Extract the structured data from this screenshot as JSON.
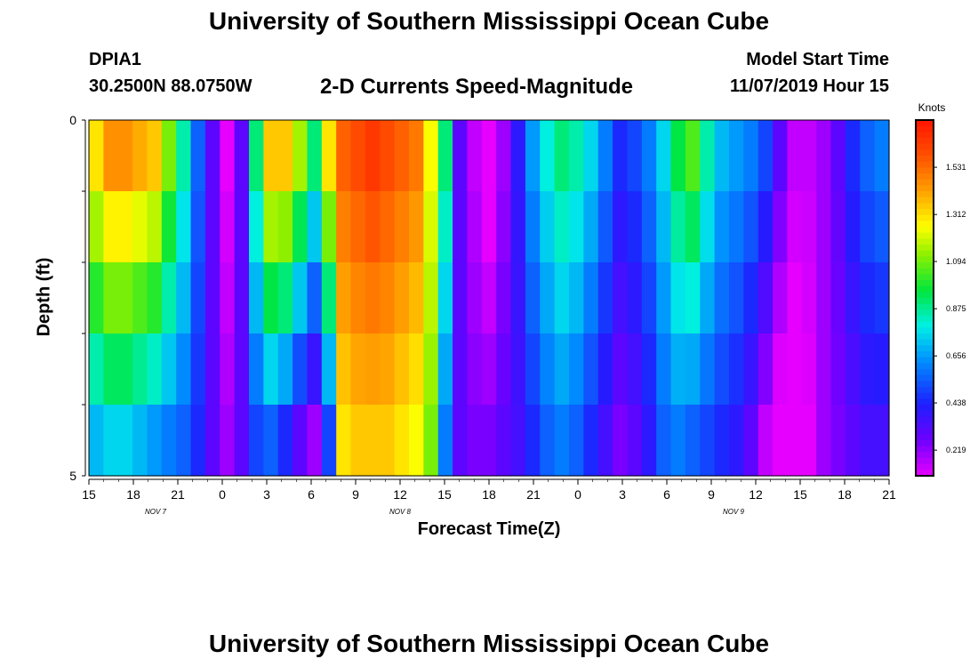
{
  "header": {
    "title": "University of Southern Mississippi Ocean Cube",
    "station": "DPIA1",
    "coords": "30.2500N 88.0750W",
    "subtitle": "2-D Currents Speed-Magnitude",
    "model_start_label": "Model Start Time",
    "model_start_value": "11/07/2019 Hour 15"
  },
  "footer": {
    "title": "University of Southern Mississippi Ocean Cube"
  },
  "chart_data": {
    "type": "heatmap",
    "title": "2-D Currents Speed-Magnitude",
    "xlabel": "Forecast Time(Z)",
    "ylabel": "Depth (ft)",
    "ylim": [
      0,
      5
    ],
    "yticks": [
      "0",
      "5"
    ],
    "xticks": [
      "15",
      "18",
      "21",
      "0",
      "3",
      "6",
      "9",
      "12",
      "15",
      "18",
      "21",
      "0",
      "3",
      "6",
      "9",
      "12",
      "15",
      "18",
      "21"
    ],
    "date_labels": [
      {
        "label": "NOV 7",
        "hour_index": 4.5
      },
      {
        "label": "NOV 8",
        "hour_index": 21
      },
      {
        "label": "NOV 9",
        "hour_index": 43.5
      }
    ],
    "x_range_hours": [
      0,
      54
    ],
    "depth_layers": 5,
    "colorbar": {
      "title": "Knots",
      "ticks": [
        "1.531",
        "1.312",
        "1.094",
        "0.875",
        "0.656",
        "0.438",
        "0.219"
      ],
      "tick_values": [
        1.531,
        1.312,
        1.094,
        0.875,
        0.656,
        0.438,
        0.219
      ],
      "min": 0.1,
      "max": 1.75
    },
    "speed_profile_surface": [
      1.3,
      1.45,
      1.45,
      1.4,
      1.35,
      1.1,
      0.85,
      0.55,
      0.3,
      0.1,
      0.3,
      0.9,
      1.35,
      1.35,
      1.15,
      0.9,
      1.3,
      1.55,
      1.6,
      1.65,
      1.6,
      1.55,
      1.5,
      1.25,
      0.9,
      0.3,
      0.15,
      0.05,
      0.2,
      0.4,
      0.65,
      0.8,
      0.9,
      0.85,
      0.75,
      0.6,
      0.45,
      0.5,
      0.6,
      0.75,
      0.95,
      1.05,
      0.85,
      0.7,
      0.65,
      0.6,
      0.5,
      0.3,
      0.15,
      0.15,
      0.2,
      0.3,
      0.45,
      0.55,
      0.6
    ],
    "speed_profile_bottom": [
      0.7,
      0.75,
      0.75,
      0.7,
      0.65,
      0.6,
      0.55,
      0.45,
      0.3,
      0.2,
      0.3,
      0.5,
      0.55,
      0.45,
      0.3,
      0.2,
      0.5,
      1.3,
      1.35,
      1.35,
      1.35,
      1.3,
      1.25,
      1.1,
      0.6,
      0.3,
      0.25,
      0.25,
      0.3,
      0.35,
      0.45,
      0.55,
      0.6,
      0.55,
      0.45,
      0.35,
      0.25,
      0.3,
      0.4,
      0.55,
      0.6,
      0.55,
      0.5,
      0.45,
      0.4,
      0.3,
      0.15,
      0.05,
      0.05,
      0.1,
      0.2,
      0.25,
      0.3,
      0.35,
      0.35
    ]
  }
}
